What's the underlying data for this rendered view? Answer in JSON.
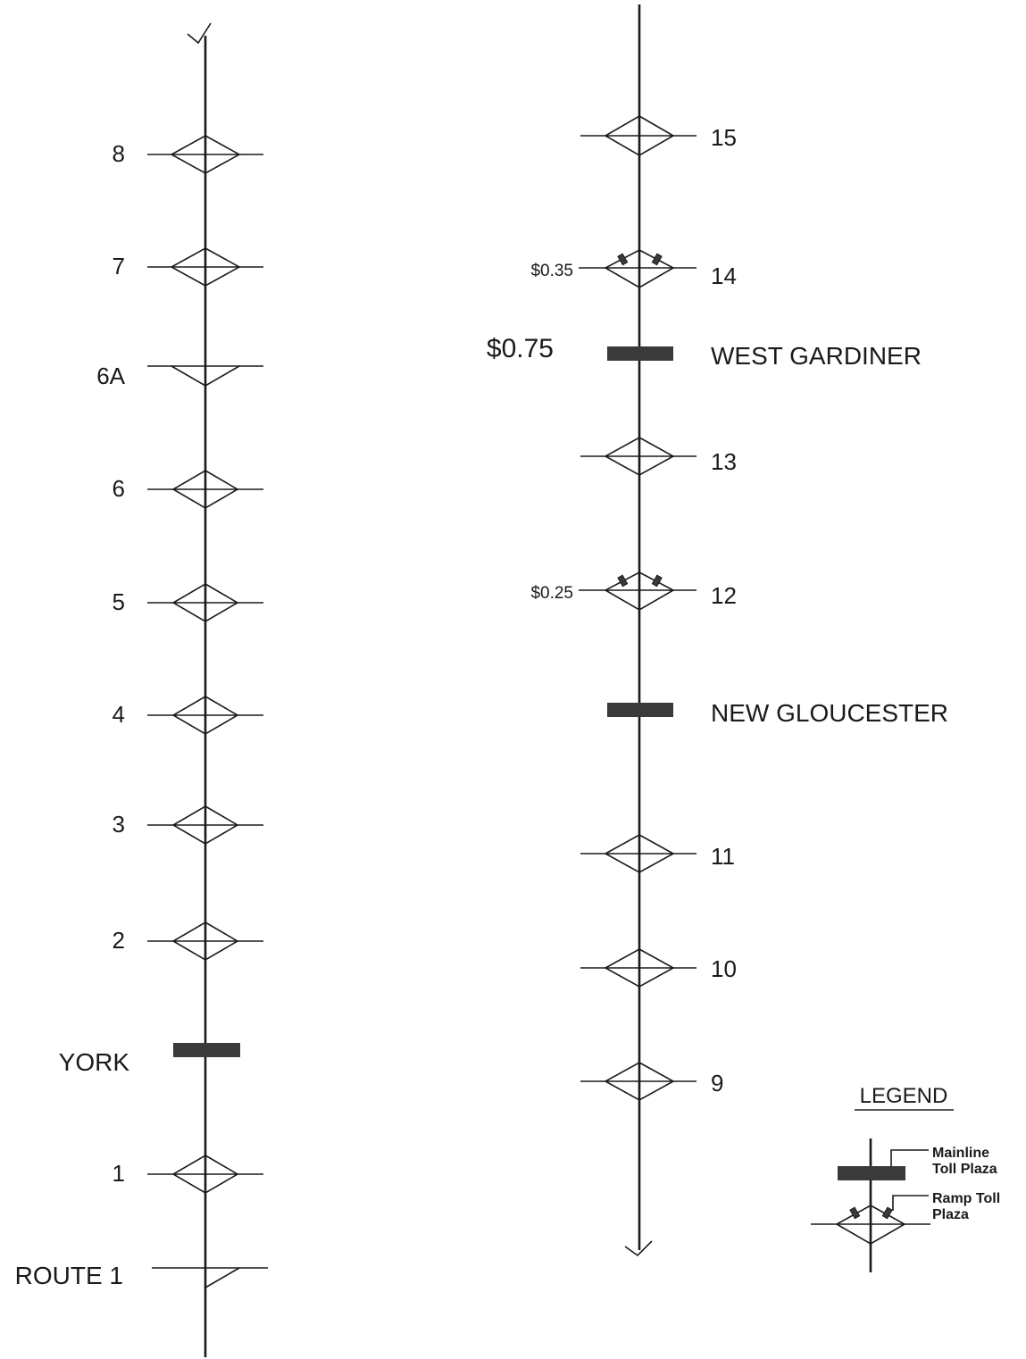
{
  "left_column": {
    "interchanges": [
      {
        "label": "8",
        "shape": "diamond"
      },
      {
        "label": "7",
        "shape": "diamond"
      },
      {
        "label": "6A",
        "shape": "half-diamond"
      },
      {
        "label": "6",
        "shape": "diamond"
      },
      {
        "label": "5",
        "shape": "diamond"
      },
      {
        "label": "4",
        "shape": "diamond"
      },
      {
        "label": "3",
        "shape": "diamond"
      },
      {
        "label": "2",
        "shape": "diamond"
      },
      {
        "label": "1",
        "shape": "diamond"
      },
      {
        "label": "ROUTE 1",
        "shape": "half-ramp"
      }
    ],
    "mainline_plaza": {
      "label": "YORK"
    }
  },
  "right_column": {
    "interchanges": [
      {
        "label": "15",
        "shape": "diamond"
      },
      {
        "label": "14",
        "shape": "ramp-toll",
        "toll": "$0.35"
      },
      {
        "label": "13",
        "shape": "diamond"
      },
      {
        "label": "12",
        "shape": "ramp-toll",
        "toll": "$0.25"
      },
      {
        "label": "11",
        "shape": "diamond"
      },
      {
        "label": "10",
        "shape": "diamond"
      },
      {
        "label": "9",
        "shape": "diamond"
      }
    ],
    "mainline_plazas": [
      {
        "label": "WEST GARDINER",
        "toll": "$0.75"
      },
      {
        "label": "NEW GLOUCESTER"
      }
    ]
  },
  "legend": {
    "title": "LEGEND",
    "mainline_line1": "Mainline",
    "mainline_line2": "Toll Plaza",
    "ramp_line1": "Ramp Toll",
    "ramp_line2": "Plaza"
  },
  "colors": {
    "ink": "#1a1a1a",
    "plaza_fill": "#3a3a3a",
    "background": "#ffffff"
  }
}
